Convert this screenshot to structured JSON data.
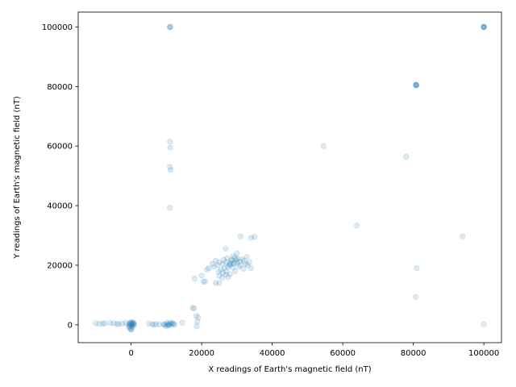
{
  "chart_data": {
    "type": "scatter",
    "title": "",
    "xlabel": "X readings of Earth's magnetic field (nT)",
    "ylabel": "Y readings of Earth's magnetic field (nT)",
    "xlim": [
      -15000,
      105000
    ],
    "ylim": [
      -6000,
      105000
    ],
    "x_ticks": [
      0,
      20000,
      40000,
      60000,
      80000,
      100000
    ],
    "y_ticks": [
      0,
      20000,
      40000,
      60000,
      80000,
      100000
    ],
    "x_tick_labels": [
      "0",
      "20000",
      "40000",
      "60000",
      "80000",
      "100000"
    ],
    "y_tick_labels": [
      "0",
      "20000",
      "40000",
      "60000",
      "80000",
      "100000"
    ],
    "grid": false,
    "marker": {
      "color": "#1f77b4",
      "alpha": 0.15
    },
    "series": [
      {
        "points": [
          [
            100000,
            100000
          ],
          [
            100000,
            100000
          ],
          [
            100000,
            100000
          ],
          [
            99900,
            100050
          ],
          [
            100050,
            99950
          ],
          [
            80800,
            80500
          ],
          [
            80800,
            80500
          ],
          [
            80800,
            80500
          ],
          [
            80700,
            80600
          ],
          [
            80900,
            80400
          ],
          [
            11000,
            100000
          ],
          [
            11200,
            100000
          ],
          [
            10900,
            100000
          ],
          [
            11000,
            61500
          ],
          [
            11100,
            59500
          ],
          [
            11000,
            53000
          ],
          [
            11200,
            52000
          ],
          [
            11000,
            39300
          ],
          [
            54500,
            60000
          ],
          [
            78000,
            56400
          ],
          [
            64000,
            33300
          ],
          [
            94000,
            29700
          ],
          [
            81000,
            19000
          ],
          [
            80700,
            9300
          ],
          [
            100000,
            200
          ],
          [
            31000,
            29700
          ],
          [
            34000,
            29200
          ],
          [
            35000,
            29500
          ],
          [
            26800,
            25600
          ],
          [
            24000,
            21500
          ],
          [
            25000,
            21000
          ],
          [
            26000,
            20500
          ],
          [
            27000,
            21000
          ],
          [
            28000,
            20000
          ],
          [
            29000,
            20500
          ],
          [
            30000,
            21000
          ],
          [
            31000,
            20000
          ],
          [
            32000,
            21500
          ],
          [
            28500,
            22000
          ],
          [
            29500,
            22500
          ],
          [
            27500,
            19500
          ],
          [
            26500,
            19000
          ],
          [
            25500,
            18500
          ],
          [
            30500,
            19500
          ],
          [
            31500,
            22000
          ],
          [
            32500,
            20500
          ],
          [
            33000,
            20000
          ],
          [
            34000,
            19000
          ],
          [
            33500,
            21000
          ],
          [
            29000,
            23000
          ],
          [
            30000,
            24000
          ],
          [
            27000,
            18000
          ],
          [
            26000,
            17500
          ],
          [
            25000,
            16500
          ],
          [
            28000,
            17000
          ],
          [
            27500,
            16000
          ],
          [
            29500,
            18000
          ],
          [
            24500,
            20000
          ],
          [
            23500,
            19500
          ],
          [
            22000,
            19000
          ],
          [
            21500,
            18500
          ],
          [
            23000,
            20500
          ],
          [
            28500,
            21500
          ],
          [
            29200,
            20800
          ],
          [
            30800,
            21200
          ],
          [
            27800,
            20300
          ],
          [
            26200,
            21800
          ],
          [
            24800,
            17800
          ],
          [
            25800,
            15800
          ],
          [
            26800,
            16800
          ],
          [
            27200,
            22400
          ],
          [
            28800,
            19200
          ],
          [
            31800,
            18800
          ],
          [
            32800,
            22800
          ],
          [
            30200,
            22200
          ],
          [
            29800,
            21700
          ],
          [
            28200,
            20700
          ],
          [
            20000,
            16500
          ],
          [
            21000,
            14500
          ],
          [
            20500,
            14500
          ],
          [
            24000,
            14000
          ],
          [
            25000,
            14000
          ],
          [
            18000,
            15500
          ],
          [
            17500,
            5700
          ],
          [
            17800,
            5500
          ],
          [
            18500,
            3000
          ],
          [
            19000,
            2500
          ],
          [
            18800,
            1000
          ],
          [
            18600,
            -500
          ],
          [
            0,
            0
          ],
          [
            200,
            300
          ],
          [
            -200,
            -200
          ],
          [
            500,
            400
          ],
          [
            -500,
            -600
          ],
          [
            300,
            -800
          ],
          [
            -300,
            700
          ],
          [
            800,
            200
          ],
          [
            -100,
            -1200
          ],
          [
            100,
            -1500
          ],
          [
            600,
            800
          ],
          [
            -700,
            100
          ],
          [
            0,
            600
          ],
          [
            400,
            -400
          ],
          [
            -400,
            400
          ],
          [
            900,
            -100
          ],
          [
            200,
            900
          ],
          [
            -600,
            -900
          ],
          [
            700,
            500
          ],
          [
            -50,
            -1700
          ],
          [
            9500,
            0
          ],
          [
            10000,
            200
          ],
          [
            10500,
            -300
          ],
          [
            11000,
            400
          ],
          [
            11500,
            100
          ],
          [
            12000,
            300
          ],
          [
            10200,
            600
          ],
          [
            10800,
            -100
          ],
          [
            11300,
            700
          ],
          [
            9800,
            -400
          ],
          [
            10600,
            100
          ],
          [
            11800,
            500
          ],
          [
            12300,
            0
          ],
          [
            9200,
            200
          ],
          [
            -10000,
            500
          ],
          [
            -8000,
            400
          ],
          [
            -6000,
            600
          ],
          [
            -5000,
            500
          ],
          [
            -4000,
            300
          ],
          [
            -2500,
            400
          ],
          [
            -1500,
            600
          ],
          [
            -9000,
            300
          ],
          [
            -7500,
            500
          ],
          [
            -3500,
            200
          ],
          [
            5000,
            400
          ],
          [
            6000,
            200
          ],
          [
            7000,
            300
          ],
          [
            8000,
            100
          ],
          [
            6500,
            -100
          ],
          [
            14500,
            700
          ]
        ]
      }
    ]
  }
}
